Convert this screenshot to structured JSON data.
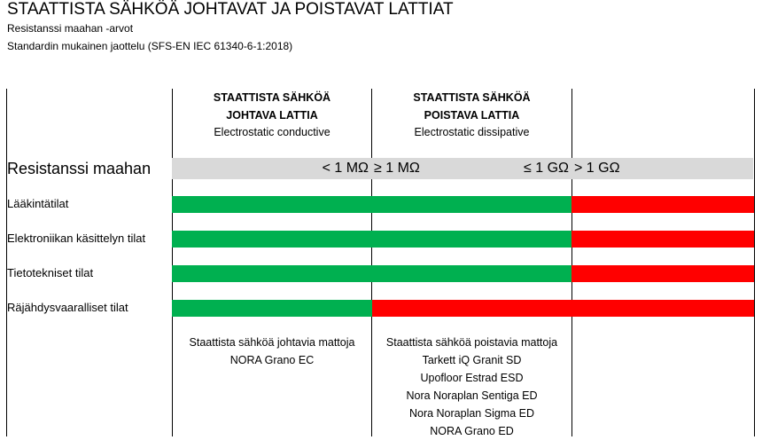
{
  "header": {
    "title": "STAATTISTA SÄHKÖÄ JOHTAVAT JA POISTAVAT LATTIAT",
    "subtitle1": "Resistanssi maahan -arvot",
    "subtitle2": "Standardin mukainen jaottelu (SFS-EN IEC 61340-6-1:2018)"
  },
  "columns": [
    {
      "line1": "STAATTISTA SÄHKÖÄ",
      "line2": "JOHTAVA LATTIA",
      "line3": "Electrostatic conductive"
    },
    {
      "line1": "STAATTISTA SÄHKÖÄ",
      "line2": "POISTAVA LATTIA",
      "line3": "Electrostatic dissipative"
    }
  ],
  "scale": {
    "label": "Resistanssi maahan",
    "lt_1m": "< 1 MΩ",
    "ge_1m": "≥ 1 MΩ",
    "le_1g": "≤ 1 GΩ",
    "gt_1g": "> 1 GΩ"
  },
  "colors": {
    "allowed": "#00b050",
    "not_allowed": "#ff0000",
    "band": "#d9d9d9"
  },
  "chart_data": {
    "type": "table",
    "title": "STAATTISTA SÄHKÖÄ JOHTAVAT JA POISTAVAT LATTIAT",
    "categories": [
      "< 1 MΩ",
      "≥ 1 MΩ … ≤ 1 GΩ",
      "> 1 GΩ"
    ],
    "rows": [
      {
        "label": "Lääkintätilat",
        "values": [
          "allowed",
          "allowed",
          "not_allowed"
        ]
      },
      {
        "label": "Elektroniikan käsittelyn tilat",
        "values": [
          "allowed",
          "allowed",
          "not_allowed"
        ]
      },
      {
        "label": "Tietotekniset tilat",
        "values": [
          "allowed",
          "allowed",
          "not_allowed"
        ]
      },
      {
        "label": "Räjähdysvaaralliset tilat",
        "values": [
          "allowed",
          "not_allowed",
          "not_allowed"
        ]
      }
    ]
  },
  "notes": {
    "conductive": [
      "Staattista sähköä johtavia mattoja",
      "NORA Grano EC"
    ],
    "dissipative": [
      "Staattista sähköä poistavia mattoja",
      "Tarkett iQ Granit SD",
      "Upofloor Estrad ESD",
      "Nora Noraplan Sentiga ED",
      "Nora Noraplan Sigma ED",
      "NORA Grano ED"
    ]
  }
}
